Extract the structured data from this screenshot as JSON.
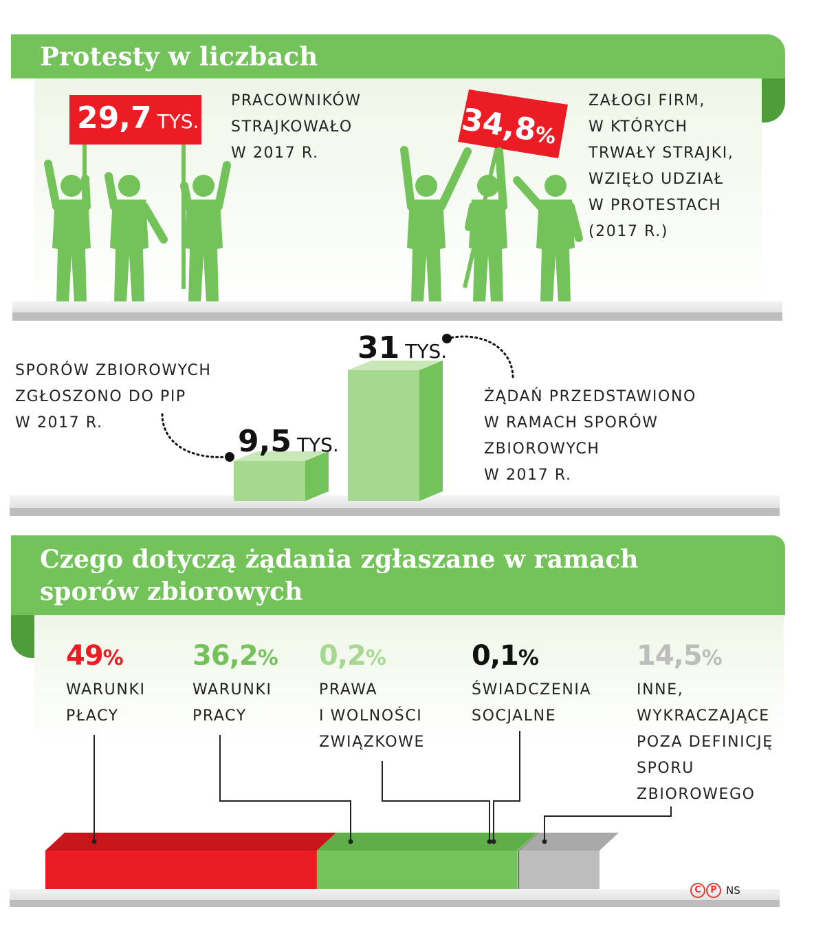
{
  "section1": {
    "title": "Protesty w liczbach",
    "sign_left": {
      "value": "29,7",
      "unit": "TYS."
    },
    "caption_left": [
      "PRACOWNIKÓW",
      "STRAJKOWAŁO",
      "W 2017 R."
    ],
    "sign_right": {
      "value": "34,8",
      "unit": "%"
    },
    "caption_right": [
      "ZAŁOGI FIRM,",
      "W KTÓRYCH",
      "TRWAŁY STRAJKI,",
      "WZIĘŁO UDZIAŁ",
      "W PROTESTACH",
      "(2017 R.)"
    ]
  },
  "section2": {
    "caption_left": [
      "SPORÓW ZBIOROWYCH",
      "ZGŁOSZONO DO PIP",
      "W 2017 R."
    ],
    "caption_right": [
      "ŻĄDAŃ PRZEDSTAWIONO",
      "W RAMACH SPORÓW",
      "ZBIOROWYCH",
      "W 2017 R."
    ]
  },
  "section3": {
    "title_lines": [
      "Czego dotyczą żądania zgłaszane w ramach",
      "sporów zbiorowych"
    ]
  },
  "credit": {
    "ns": "NS"
  },
  "colors": {
    "green": "#73c25a",
    "green_dark": "#4f9c3a",
    "light_green": "#a6d98f",
    "red": "#ec1c24",
    "gray": "#bdbdbd",
    "dark": "#111111"
  },
  "chart_data": [
    {
      "type": "bar",
      "categories": [
        "SPORÓW ZBIOROWYCH ZGŁOSZONO DO PIP W 2017 R.",
        "ŻĄDAŃ PRZEDSTAWIONO W RAMACH SPORÓW ZBIOROWYCH W 2017 R."
      ],
      "values": [
        9.5,
        31
      ],
      "value_labels": [
        "9,5",
        "31"
      ],
      "unit": "TYS.",
      "style": "3d"
    },
    {
      "type": "bar",
      "orientation": "horizontal-stacked",
      "categories": [
        "WARUNKI PŁACY",
        "WARUNKI PRACY",
        "PRAWA I WOLNOŚCI ZWIĄZKOWE",
        "ŚWIADCZENIA SOCJALNE",
        "INNE, WYKRACZAJĄCE POZA DEFINICJĘ SPORU ZBIOROWEGO"
      ],
      "values": [
        49,
        36.2,
        0.2,
        0.1,
        14.5
      ],
      "value_labels": [
        "49",
        "36,2",
        "0,2",
        "0,1",
        "14,5"
      ],
      "unit": "%",
      "colors": [
        "#ec1c24",
        "#73c25a",
        "#a6d98f",
        "#111111",
        "#bdbdbd"
      ],
      "label_lines": [
        [
          "WARUNKI",
          "PŁACY"
        ],
        [
          "WARUNKI",
          "PRACY"
        ],
        [
          "PRAWA",
          "I WOLNOŚCI",
          "ZWIĄZKOWE"
        ],
        [
          "ŚWIADCZENIA",
          "SOCJALNE"
        ],
        [
          "INNE,",
          "WYKRACZAJĄCE",
          "POZA DEFINICJĘ",
          "SPORU",
          "ZBIOROWEGO"
        ]
      ],
      "style": "3d"
    }
  ]
}
